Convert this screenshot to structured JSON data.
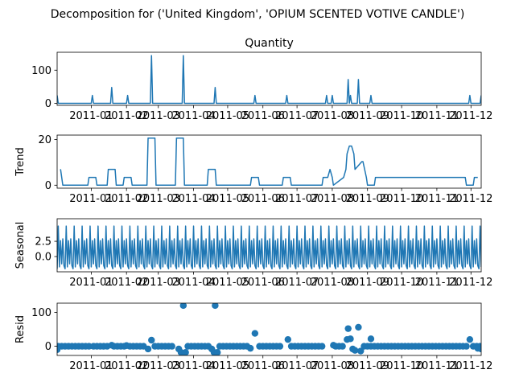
{
  "figure": {
    "suptitle": "Decomposition for ('United Kingdom', 'OPIUM SCENTED VOTIVE CANDLE')",
    "line_color": "#1f77b4"
  },
  "chart_data": [
    {
      "type": "line",
      "panel": "observed",
      "title": "Quantity",
      "ylabel": "",
      "ylim": [
        -6,
        154
      ],
      "yticks": [
        0,
        100
      ],
      "ytick_labels": [
        "0",
        "100"
      ],
      "xlim": [
        "2010-12-01",
        "2011-12-09"
      ],
      "xticks": [
        "2010-12-31",
        "2011-01-31",
        "2011-02-28",
        "2011-03-31",
        "2011-04-30",
        "2011-05-31",
        "2011-06-30",
        "2011-07-31",
        "2011-08-31",
        "2011-09-30",
        "2011-10-31",
        "2011-11-30"
      ],
      "xtick_labels": [
        "2011-01",
        "2011-02",
        "2011-03",
        "2011-04",
        "2011-05",
        "2011-06",
        "2011-07",
        "2011-08",
        "2011-09",
        "2011-10",
        "2011-11",
        "2011-12"
      ],
      "x": [
        "2010-12-01",
        "2010-12-02",
        "2010-12-03",
        "2010-12-31",
        "2011-01-01",
        "2011-01-02",
        "2011-01-17",
        "2011-01-18",
        "2011-01-19",
        "2011-01-31",
        "2011-02-01",
        "2011-02-02",
        "2011-02-21",
        "2011-02-22",
        "2011-02-23",
        "2011-03-21",
        "2011-03-22",
        "2011-03-23",
        "2011-04-18",
        "2011-04-19",
        "2011-04-20",
        "2011-05-23",
        "2011-05-24",
        "2011-05-25",
        "2011-06-20",
        "2011-06-21",
        "2011-06-22",
        "2011-07-25",
        "2011-07-26",
        "2011-07-27",
        "2011-07-30",
        "2011-07-31",
        "2011-08-01",
        "2011-08-13",
        "2011-08-14",
        "2011-08-15",
        "2011-08-16",
        "2011-08-17",
        "2011-08-22",
        "2011-08-23",
        "2011-08-24",
        "2011-09-02",
        "2011-09-03",
        "2011-09-04",
        "2011-11-28",
        "2011-11-29",
        "2011-11-30",
        "2011-12-07",
        "2011-12-08",
        "2011-12-09"
      ],
      "y": [
        24,
        0,
        0,
        0,
        24,
        0,
        0,
        48,
        0,
        0,
        24,
        0,
        0,
        144,
        0,
        0,
        144,
        0,
        0,
        48,
        0,
        0,
        24,
        0,
        0,
        24,
        0,
        0,
        24,
        0,
        0,
        24,
        0,
        0,
        72,
        0,
        24,
        0,
        0,
        72,
        0,
        0,
        24,
        0,
        0,
        24,
        0,
        0,
        0,
        24
      ]
    },
    {
      "type": "line",
      "panel": "trend",
      "title": "",
      "ylabel": "Trend",
      "ylim": [
        -1.3,
        21.9
      ],
      "yticks": [
        0,
        20
      ],
      "ytick_labels": [
        "0",
        "20"
      ],
      "xlim": [
        "2010-12-01",
        "2011-12-09"
      ],
      "xticks": [
        "2010-12-31",
        "2011-01-31",
        "2011-02-28",
        "2011-03-31",
        "2011-04-30",
        "2011-05-31",
        "2011-06-30",
        "2011-07-31",
        "2011-08-31",
        "2011-09-30",
        "2011-10-31",
        "2011-11-30"
      ],
      "xtick_labels": [
        "2011-01",
        "2011-02",
        "2011-03",
        "2011-04",
        "2011-05",
        "2011-06",
        "2011-07",
        "2011-08",
        "2011-09",
        "2011-10",
        "2011-11",
        "2011-12"
      ],
      "x": [
        "2010-12-04",
        "2010-12-06",
        "2010-12-28",
        "2010-12-29",
        "2011-01-04",
        "2011-01-05",
        "2011-01-14",
        "2011-01-15",
        "2011-01-21",
        "2011-01-22",
        "2011-01-28",
        "2011-01-29",
        "2011-02-04",
        "2011-02-05",
        "2011-02-18",
        "2011-02-19",
        "2011-02-25",
        "2011-02-26",
        "2011-03-15",
        "2011-03-16",
        "2011-03-22",
        "2011-03-23",
        "2011-04-12",
        "2011-04-13",
        "2011-04-19",
        "2011-04-20",
        "2011-05-20",
        "2011-05-21",
        "2011-05-27",
        "2011-05-28",
        "2011-06-17",
        "2011-06-18",
        "2011-06-24",
        "2011-06-25",
        "2011-07-22",
        "2011-07-23",
        "2011-07-27",
        "2011-07-29",
        "2011-07-31",
        "2011-08-01",
        "2011-08-10",
        "2011-08-12",
        "2011-08-13",
        "2011-08-15",
        "2011-08-17",
        "2011-08-19",
        "2011-08-20",
        "2011-08-26",
        "2011-08-27",
        "2011-08-30",
        "2011-08-31",
        "2011-09-06",
        "2011-09-07",
        "2011-11-25",
        "2011-11-26",
        "2011-12-02",
        "2011-12-03",
        "2011-12-06"
      ],
      "y": [
        7,
        0,
        0,
        3.4,
        3.4,
        0,
        0,
        6.9,
        6.9,
        0,
        0,
        3.4,
        3.4,
        0,
        0,
        20.6,
        20.6,
        0,
        0,
        20.6,
        20.6,
        0,
        0,
        6.9,
        6.9,
        0,
        0,
        3.4,
        3.4,
        0,
        0,
        3.4,
        3.4,
        0,
        0,
        3.4,
        3.4,
        6.9,
        3.4,
        0,
        3.4,
        6.9,
        13.7,
        17.1,
        17.1,
        13.7,
        6.9,
        10.3,
        10.3,
        3.4,
        0,
        0,
        3.4,
        3.4,
        0,
        0,
        3.4,
        3.4
      ]
    },
    {
      "type": "line",
      "panel": "seasonal",
      "title": "",
      "ylabel": "Seasonal",
      "ylim": [
        -2.5,
        6.2
      ],
      "yticks": [
        0,
        2.5
      ],
      "ytick_labels": [
        "0.0",
        "2.5"
      ],
      "xlim": [
        "2010-12-01",
        "2011-12-09"
      ],
      "xticks": [
        "2010-12-31",
        "2011-01-31",
        "2011-02-28",
        "2011-03-31",
        "2011-04-30",
        "2011-05-31",
        "2011-06-30",
        "2011-07-31",
        "2011-08-31",
        "2011-09-30",
        "2011-10-31",
        "2011-11-30"
      ],
      "xtick_labels": [
        "2011-01",
        "2011-02",
        "2011-03",
        "2011-04",
        "2011-05",
        "2011-06",
        "2011-07",
        "2011-08",
        "2011-09",
        "2011-10",
        "2011-11",
        "2011-12"
      ],
      "period_days": 7,
      "start": "2010-12-01",
      "end": "2011-12-09",
      "pattern": [
        -2.0,
        5.0,
        -1.7,
        2.6,
        -1.2,
        2.9,
        -1.5
      ]
    },
    {
      "type": "scatter",
      "panel": "resid",
      "title": "",
      "ylabel": "Resid",
      "ylim": [
        -27,
        127
      ],
      "yticks": [
        0,
        100
      ],
      "ytick_labels": [
        "0",
        "100"
      ],
      "xlim": [
        "2010-12-01",
        "2011-12-09"
      ],
      "xticks": [
        "2010-12-31",
        "2011-01-31",
        "2011-02-28",
        "2011-03-31",
        "2011-04-30",
        "2011-05-31",
        "2011-06-30",
        "2011-07-31",
        "2011-08-31",
        "2011-09-30",
        "2011-10-31",
        "2011-11-30"
      ],
      "xtick_labels": [
        "2011-01",
        "2011-02",
        "2011-03",
        "2011-04",
        "2011-05",
        "2011-06",
        "2011-07",
        "2011-08",
        "2011-09",
        "2011-10",
        "2011-11",
        "2011-12"
      ],
      "baseline_points": [
        "2010-12-02",
        "2010-12-05",
        "2010-12-08",
        "2010-12-11",
        "2010-12-14",
        "2010-12-17",
        "2010-12-20",
        "2010-12-23",
        "2010-12-26",
        "2010-12-29",
        "2011-01-02",
        "2011-01-05",
        "2011-01-08",
        "2011-01-11",
        "2011-01-14",
        "2011-01-20",
        "2011-01-23",
        "2011-01-26",
        "2011-01-29",
        "2011-02-03",
        "2011-02-06",
        "2011-02-09",
        "2011-02-12",
        "2011-02-15",
        "2011-02-25",
        "2011-02-28",
        "2011-03-03",
        "2011-03-06",
        "2011-03-09",
        "2011-03-12",
        "2011-03-26",
        "2011-03-29",
        "2011-04-01",
        "2011-04-04",
        "2011-04-07",
        "2011-04-10",
        "2011-04-13",
        "2011-04-23",
        "2011-04-26",
        "2011-04-29",
        "2011-05-02",
        "2011-05-05",
        "2011-05-08",
        "2011-05-11",
        "2011-05-14",
        "2011-05-17",
        "2011-05-28",
        "2011-05-31",
        "2011-06-03",
        "2011-06-06",
        "2011-06-09",
        "2011-06-12",
        "2011-06-15",
        "2011-06-25",
        "2011-06-28",
        "2011-07-01",
        "2011-07-04",
        "2011-07-07",
        "2011-07-10",
        "2011-07-13",
        "2011-07-16",
        "2011-07-19",
        "2011-07-22",
        "2011-08-03",
        "2011-08-06",
        "2011-08-09",
        "2011-08-28",
        "2011-08-31",
        "2011-09-03",
        "2011-09-06",
        "2011-09-09",
        "2011-09-12",
        "2011-09-15",
        "2011-09-18",
        "2011-09-21",
        "2011-09-24",
        "2011-09-27",
        "2011-09-30",
        "2011-10-03",
        "2011-10-06",
        "2011-10-09",
        "2011-10-12",
        "2011-10-15",
        "2011-10-18",
        "2011-10-21",
        "2011-10-24",
        "2011-10-27",
        "2011-10-30",
        "2011-11-02",
        "2011-11-05",
        "2011-11-08",
        "2011-11-11",
        "2011-11-14",
        "2011-11-17",
        "2011-11-20",
        "2011-11-23",
        "2011-11-26",
        "2011-12-02",
        "2011-12-05",
        "2011-12-08"
      ],
      "x": [
        "2010-12-01",
        "2011-01-18",
        "2011-01-31",
        "2011-02-22",
        "2011-02-19",
        "2011-03-18",
        "2011-03-20",
        "2011-03-22",
        "2011-03-23",
        "2011-03-24",
        "2011-04-16",
        "2011-04-18",
        "2011-04-19",
        "2011-04-20",
        "2011-04-21",
        "2011-05-24",
        "2011-05-20",
        "2011-06-22",
        "2011-08-01",
        "2011-08-13",
        "2011-08-14",
        "2011-08-16",
        "2011-08-18",
        "2011-08-20",
        "2011-08-23",
        "2011-08-25",
        "2011-09-03",
        "2011-11-29",
        "2011-12-06",
        "2011-12-09"
      ],
      "y": [
        -10,
        3,
        2,
        18,
        -8,
        -8,
        -18,
        120,
        -20,
        -18,
        -8,
        -18,
        120,
        -20,
        -18,
        38,
        -6,
        20,
        3,
        20,
        52,
        22,
        -8,
        -12,
        56,
        -14,
        22,
        20,
        -6,
        -8
      ]
    }
  ]
}
